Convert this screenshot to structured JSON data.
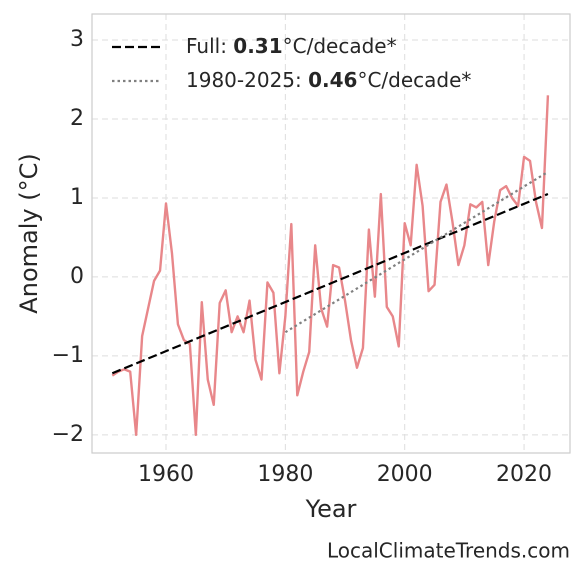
{
  "chart_data": {
    "type": "line",
    "xlabel": "Year",
    "ylabel": "Anomaly (°C)",
    "source": "LocalClimateTrends.com",
    "color": "#e8878a",
    "x": [
      1951,
      1952,
      1953,
      1954,
      1955,
      1956,
      1957,
      1958,
      1959,
      1960,
      1961,
      1962,
      1963,
      1964,
      1965,
      1966,
      1967,
      1968,
      1969,
      1970,
      1971,
      1972,
      1973,
      1974,
      1975,
      1976,
      1977,
      1978,
      1979,
      1980,
      1981,
      1982,
      1983,
      1984,
      1985,
      1986,
      1987,
      1988,
      1989,
      1990,
      1991,
      1992,
      1993,
      1994,
      1995,
      1996,
      1997,
      1998,
      1999,
      2000,
      2001,
      2002,
      2003,
      2004,
      2005,
      2006,
      2007,
      2008,
      2009,
      2010,
      2011,
      2012,
      2013,
      2014,
      2015,
      2016,
      2017,
      2018,
      2019,
      2020,
      2021,
      2022,
      2023,
      2024
    ],
    "values": [
      -1.25,
      -1.2,
      -1.17,
      -1.2,
      -2.0,
      -0.75,
      -0.4,
      -0.05,
      0.08,
      0.93,
      0.3,
      -0.6,
      -0.8,
      -0.85,
      -2.0,
      -0.32,
      -1.3,
      -1.62,
      -0.33,
      -0.17,
      -0.7,
      -0.5,
      -0.7,
      -0.3,
      -1.05,
      -1.3,
      -0.07,
      -0.2,
      -1.22,
      -0.5,
      0.67,
      -1.5,
      -1.2,
      -0.95,
      0.4,
      -0.4,
      -0.63,
      0.15,
      0.12,
      -0.3,
      -0.8,
      -1.15,
      -0.9,
      0.6,
      -0.25,
      1.05,
      -0.38,
      -0.5,
      -0.88,
      0.68,
      0.4,
      1.42,
      0.9,
      -0.18,
      -0.1,
      0.95,
      1.17,
      0.7,
      0.15,
      0.4,
      0.92,
      0.88,
      0.95,
      0.15,
      0.7,
      1.1,
      1.15,
      1.0,
      0.9,
      1.52,
      1.47,
      0.95,
      0.62,
      2.3
    ],
    "trend_lines": [
      {
        "name": [
          "Full: ",
          "0.31",
          "°C/decade*"
        ],
        "color": "#000000",
        "style": "dashed",
        "x": [
          1951,
          2024
        ],
        "values": [
          -1.22,
          1.05
        ]
      },
      {
        "name": [
          "1980-2025: ",
          "0.46",
          "°C/decade*"
        ],
        "color": "#808080",
        "style": "dotted",
        "x": [
          1980,
          2024
        ],
        "values": [
          -0.7,
          1.33
        ]
      }
    ],
    "legend": "upper left",
    "grid": true,
    "xlim": [
      1947.6,
      2027.7
    ],
    "ylim": [
      -2.23,
      3.33
    ],
    "xticks": [
      1960,
      1980,
      2000,
      2020
    ],
    "yticks": [
      {
        "value": -2,
        "label": "−2"
      },
      {
        "value": -1,
        "label": "−1"
      },
      0,
      1,
      2,
      3
    ]
  }
}
